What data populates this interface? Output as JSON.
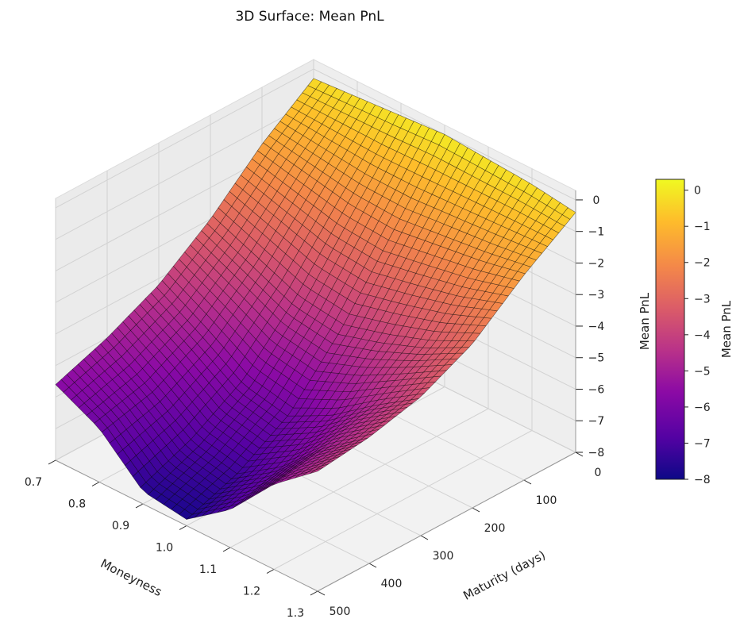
{
  "chart_data": {
    "type": "surface",
    "title": "3D Surface: Mean PnL",
    "xlabel": "Moneyness",
    "ylabel": "Maturity (days)",
    "zlabel": "Mean PnL",
    "colorbar_label": "Mean PnL",
    "colormap": "plasma",
    "grid": true,
    "xlim": [
      0.7,
      1.3
    ],
    "ylim": [
      0,
      500
    ],
    "zlim": [
      -8,
      0.3
    ],
    "x_ticks": [
      "1.3",
      "1.2",
      "1.1",
      "1.0",
      "0.9",
      "0.8",
      "0.7"
    ],
    "x_tick_values": [
      1.3,
      1.2,
      1.1,
      1.0,
      0.9,
      0.8,
      0.7
    ],
    "y_ticks": [
      "0",
      "100",
      "200",
      "300",
      "400",
      "500"
    ],
    "y_tick_values": [
      0,
      100,
      200,
      300,
      400,
      500
    ],
    "z_ticks": [
      "0",
      "−1",
      "−2",
      "−3",
      "−4",
      "−5",
      "−6",
      "−7",
      "−8"
    ],
    "z_tick_values": [
      0,
      -1,
      -2,
      -3,
      -4,
      -5,
      -6,
      -7,
      -8
    ],
    "colorbar_ticks": [
      "0",
      "−1",
      "−2",
      "−3",
      "−4",
      "−5",
      "−6",
      "−7",
      "−8"
    ],
    "colorbar_tick_values": [
      0,
      -1,
      -2,
      -3,
      -4,
      -5,
      -6,
      -7,
      -8
    ],
    "surface": {
      "moneyness": [
        1.3,
        1.2,
        1.1,
        1.0,
        0.9,
        0.8,
        0.7
      ],
      "maturity_days": [
        0,
        100,
        200,
        300,
        400,
        500
      ],
      "mean_pnl": [
        [
          -0.4,
          -1.5,
          -2.8,
          -3.6,
          -4.0,
          -4.2
        ],
        [
          -0.2,
          -1.8,
          -3.5,
          -4.5,
          -5.0,
          -5.3
        ],
        [
          -0.1,
          -2.0,
          -4.0,
          -5.5,
          -6.3,
          -6.8
        ],
        [
          0.0,
          -2.2,
          -4.4,
          -6.2,
          -7.2,
          -7.8
        ],
        [
          -0.1,
          -2.1,
          -4.2,
          -5.9,
          -6.9,
          -7.6
        ],
        [
          -0.2,
          -1.8,
          -3.6,
          -5.0,
          -5.9,
          -6.3
        ],
        [
          -0.3,
          -1.5,
          -3.0,
          -4.2,
          -5.0,
          -5.6
        ]
      ]
    }
  }
}
